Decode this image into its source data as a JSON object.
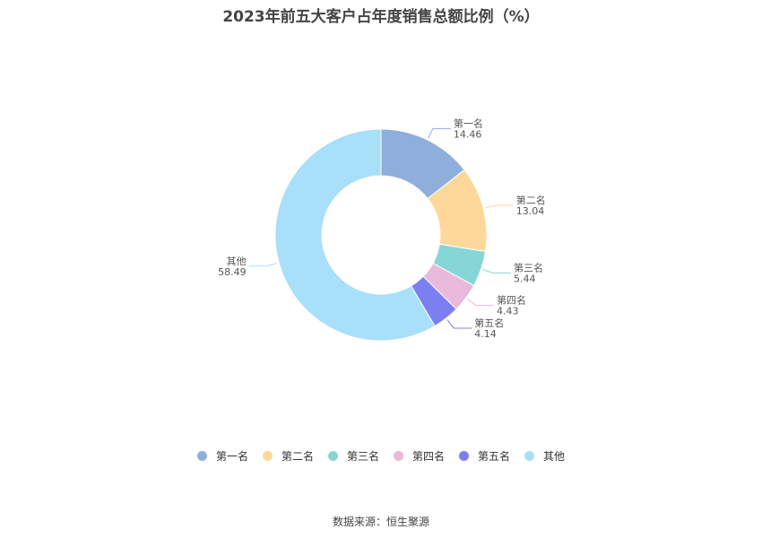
{
  "chart_data": {
    "type": "pie",
    "title": "2023年前五大客户占年度销售总额比例（%）",
    "donut": true,
    "categories": [
      "第一名",
      "第二名",
      "第三名",
      "第四名",
      "第五名",
      "其他"
    ],
    "values": [
      14.46,
      13.04,
      5.44,
      4.43,
      4.14,
      58.49
    ],
    "value_labels": [
      "14.46",
      "13.04",
      "5.44",
      "4.43",
      "4.14",
      "58.49"
    ],
    "colors": [
      "#8eaedc",
      "#fdd89a",
      "#86d6d8",
      "#e8b9da",
      "#7b7ff0",
      "#a8dff9"
    ],
    "legend_position": "bottom"
  },
  "footer": {
    "source": "数据来源：恒生聚源"
  }
}
